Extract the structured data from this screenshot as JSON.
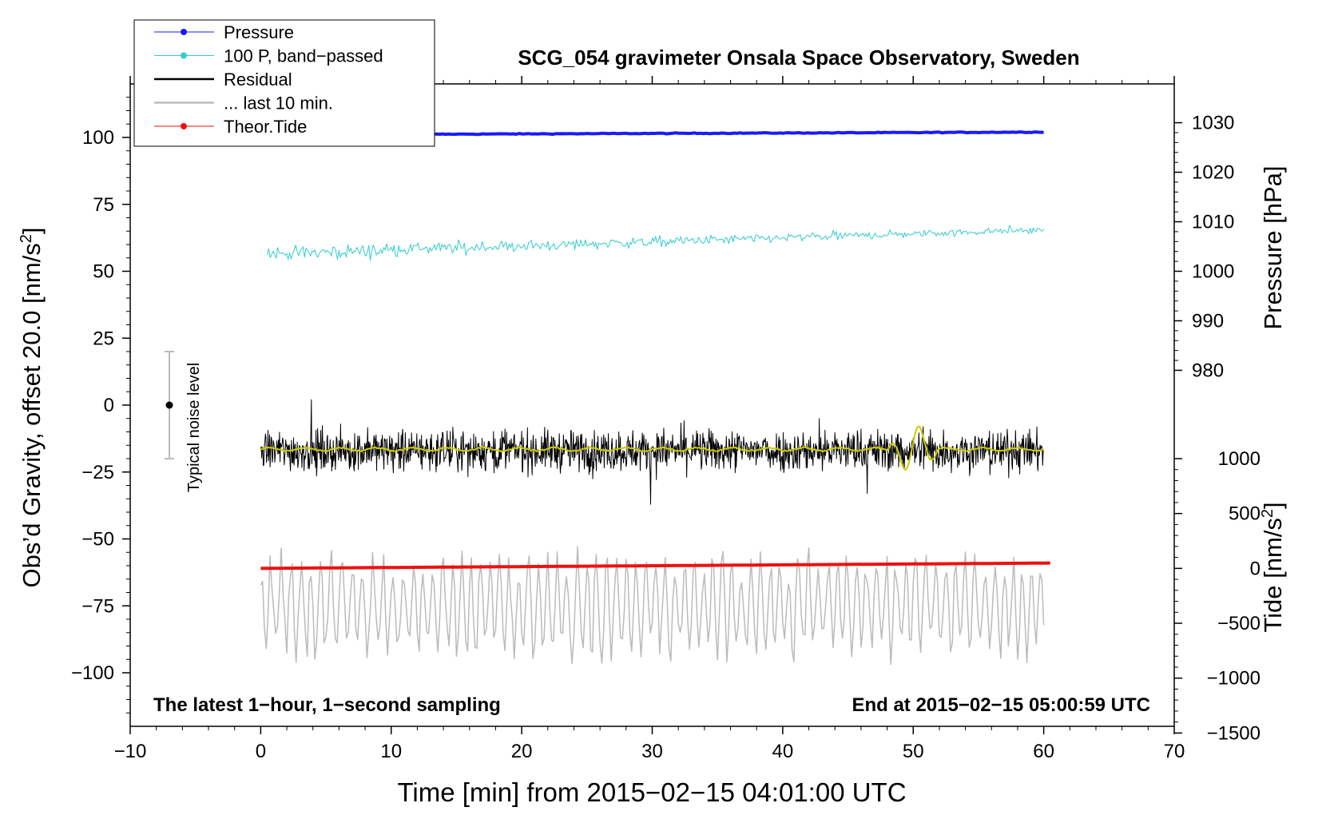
{
  "chart_data": {
    "type": "line",
    "title": "SCG_054 gravimeter Onsala Space Observatory, Sweden",
    "xlabel": "Time [min] from 2015−02−15 04:01:00 UTC",
    "ylabel_left": "Obs’d Gravity, offset 20.0 [nm/s",
    "ylabel_left_sup": "2",
    "ylabel_left_end": "]",
    "ylabel_right_pressure": "Pressure [hPa]",
    "ylabel_right_tide": "Tide [nm/s",
    "ylabel_right_tide_sup": "2",
    "ylabel_right_tide_end": "]",
    "xlim": [
      -10,
      70
    ],
    "ylim_left": [
      -120,
      120
    ],
    "x_ticks": [
      {
        "v": -10,
        "label": "−10"
      },
      {
        "v": 0,
        "label": "0"
      },
      {
        "v": 10,
        "label": "10"
      },
      {
        "v": 20,
        "label": "20"
      },
      {
        "v": 30,
        "label": "30"
      },
      {
        "v": 40,
        "label": "40"
      },
      {
        "v": 50,
        "label": "50"
      },
      {
        "v": 60,
        "label": "60"
      },
      {
        "v": 70,
        "label": "70"
      }
    ],
    "y_left_ticks": [
      {
        "v": 100,
        "label": "100"
      },
      {
        "v": 75,
        "label": "75"
      },
      {
        "v": 50,
        "label": "50"
      },
      {
        "v": 25,
        "label": "25"
      },
      {
        "v": 0,
        "label": "0"
      },
      {
        "v": -25,
        "label": "−25"
      },
      {
        "v": -50,
        "label": "−50"
      },
      {
        "v": -75,
        "label": "−75"
      },
      {
        "v": -100,
        "label": "−100"
      }
    ],
    "pressure_ticks": [
      {
        "v": 1030,
        "label": "1030",
        "y": 105.5
      },
      {
        "v": 1020,
        "label": "1020",
        "y": 87
      },
      {
        "v": 1010,
        "label": "1010",
        "y": 68.5
      },
      {
        "v": 1000,
        "label": "1000",
        "y": 50
      },
      {
        "v": 990,
        "label": "990",
        "y": 31.5
      },
      {
        "v": 980,
        "label": "980",
        "y": 13
      }
    ],
    "tide_ticks": [
      {
        "v": 1000,
        "label": "1000",
        "y": -20
      },
      {
        "v": 500,
        "label": "500",
        "y": -40.5
      },
      {
        "v": 0,
        "label": "0",
        "y": -61
      },
      {
        "v": -500,
        "label": "−500",
        "y": -81.5
      },
      {
        "v": -1000,
        "label": "−1000",
        "y": -102
      },
      {
        "v": -1500,
        "label": "−1500",
        "y": -122.5
      }
    ],
    "legend": [
      {
        "label": "Pressure",
        "color": "#1a1aff",
        "dot": true
      },
      {
        "label": "100 P, band−passed",
        "color": "#33cccc",
        "dot": true
      },
      {
        "label": "Residual",
        "color": "#000000",
        "dot": false
      },
      {
        "label": "... last 10 min.",
        "color": "#bbbbbb",
        "dot": false
      },
      {
        "label": "Theor.Tide",
        "color": "#ee1111",
        "dot": true
      }
    ],
    "annotations": {
      "bottom_left": "The latest 1−hour, 1−second sampling",
      "bottom_right": "End at 2015−02−15 05:00:59 UTC",
      "noise": "Typical noise level"
    },
    "noise_bar": {
      "x": -7,
      "center": 0,
      "half_range": 20
    },
    "series": [
      {
        "name": "Pressure",
        "color": "#1a1aff",
        "width": 4,
        "kind": "trend",
        "x0": 13,
        "x1": 60,
        "y0": 101.2,
        "y1": 102.0,
        "noise": 0.15
      },
      {
        "name": "100 P, band−passed",
        "color": "#33cccc",
        "width": 1,
        "kind": "noisy",
        "x0": 0.5,
        "x1": 60,
        "y0": 56.5,
        "y1": 65.5,
        "amp_start": 5.0,
        "amp_end": 2.0,
        "samples": 520
      },
      {
        "name": "Residual",
        "color": "#000000",
        "width": 1,
        "kind": "noisy",
        "x0": 0,
        "x1": 60,
        "y0": -17,
        "y1": -17,
        "amp_start": 14,
        "amp_end": 14,
        "samples": 1500
      },
      {
        "name": "Residual smoothed",
        "color": "#cccc00",
        "width": 2,
        "kind": "smooth",
        "x0": 0,
        "x1": 60,
        "y0": -16.5,
        "y1": -16.5,
        "burst_start": 48,
        "burst_end": 52,
        "burst_amp": 9
      },
      {
        "name": "... last 10 min.",
        "color": "#bbbbbb",
        "width": 1.5,
        "kind": "wave",
        "x0": 0,
        "x1": 60,
        "y0": -75,
        "y1": -75,
        "amp": 16,
        "samples": 420
      },
      {
        "name": "Theor.Tide",
        "color": "#ee1111",
        "width": 4,
        "kind": "trend",
        "x0": 0,
        "x1": 60.5,
        "y0": -61,
        "y1": -59,
        "noise": 0.0
      }
    ]
  }
}
